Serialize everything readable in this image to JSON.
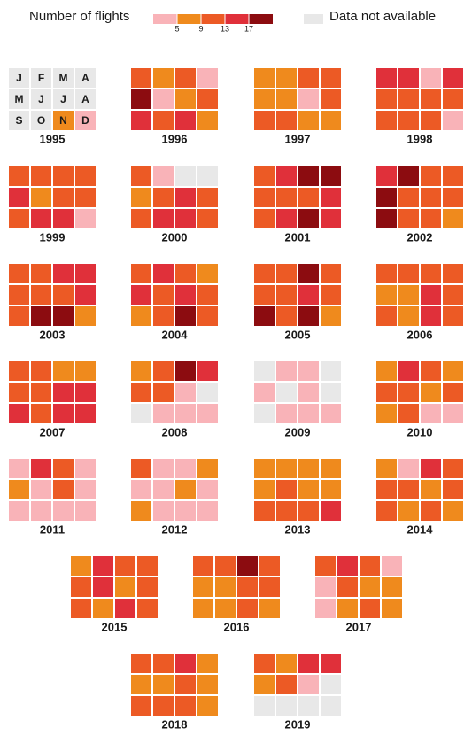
{
  "chart_data": {
    "type": "calendar-heatmap",
    "legend_title": "Number of flights",
    "missing_label": "Data not available",
    "missing_color": "#e8e8e8",
    "bins": [
      5,
      9,
      13,
      17
    ],
    "colors": [
      "#f9b3b8",
      "#ef8a1d",
      "#ec5a25",
      "#e0303a",
      "#8c0c10"
    ],
    "month_labels": [
      "J",
      "F",
      "M",
      "A",
      "M",
      "J",
      "J",
      "A",
      "S",
      "O",
      "N",
      "D"
    ],
    "years": [
      {
        "year": "1995",
        "values": [
          null,
          null,
          null,
          null,
          null,
          null,
          null,
          null,
          null,
          null,
          7,
          3
        ]
      },
      {
        "year": "1996",
        "values": [
          11,
          7,
          11,
          3,
          19,
          3,
          7,
          11,
          15,
          11,
          15,
          7
        ]
      },
      {
        "year": "1997",
        "values": [
          7,
          7,
          11,
          11,
          7,
          7,
          3,
          11,
          11,
          11,
          7,
          7
        ]
      },
      {
        "year": "1998",
        "values": [
          15,
          15,
          3,
          15,
          11,
          11,
          11,
          11,
          11,
          11,
          11,
          3
        ]
      },
      {
        "year": "1999",
        "values": [
          11,
          11,
          11,
          11,
          15,
          7,
          11,
          11,
          11,
          15,
          15,
          3
        ]
      },
      {
        "year": "2000",
        "values": [
          11,
          3,
          null,
          null,
          7,
          11,
          15,
          11,
          11,
          15,
          15,
          11
        ]
      },
      {
        "year": "2001",
        "values": [
          11,
          15,
          19,
          19,
          11,
          11,
          11,
          15,
          11,
          15,
          19,
          15
        ]
      },
      {
        "year": "2002",
        "values": [
          15,
          19,
          11,
          11,
          19,
          11,
          11,
          11,
          19,
          11,
          11,
          7
        ]
      },
      {
        "year": "2003",
        "values": [
          11,
          11,
          15,
          15,
          11,
          11,
          11,
          15,
          11,
          19,
          19,
          7
        ]
      },
      {
        "year": "2004",
        "values": [
          11,
          15,
          11,
          7,
          15,
          11,
          15,
          11,
          7,
          11,
          19,
          11
        ]
      },
      {
        "year": "2005",
        "values": [
          11,
          11,
          19,
          11,
          11,
          11,
          15,
          11,
          19,
          11,
          19,
          7
        ]
      },
      {
        "year": "2006",
        "values": [
          11,
          11,
          11,
          11,
          7,
          7,
          15,
          11,
          11,
          7,
          15,
          11
        ]
      },
      {
        "year": "2007",
        "values": [
          11,
          11,
          7,
          7,
          11,
          11,
          15,
          15,
          15,
          11,
          15,
          15
        ]
      },
      {
        "year": "2008",
        "values": [
          7,
          11,
          19,
          15,
          11,
          11,
          3,
          null,
          null,
          3,
          3,
          3
        ]
      },
      {
        "year": "2009",
        "values": [
          null,
          3,
          3,
          null,
          3,
          null,
          3,
          null,
          null,
          3,
          3,
          3
        ]
      },
      {
        "year": "2010",
        "values": [
          7,
          15,
          11,
          7,
          11,
          11,
          7,
          11,
          7,
          11,
          3,
          3
        ]
      },
      {
        "year": "2011",
        "values": [
          3,
          15,
          11,
          3,
          7,
          3,
          11,
          3,
          3,
          3,
          3,
          3
        ]
      },
      {
        "year": "2012",
        "values": [
          11,
          3,
          3,
          7,
          3,
          3,
          7,
          3,
          7,
          3,
          3,
          3
        ]
      },
      {
        "year": "2013",
        "values": [
          7,
          7,
          7,
          7,
          7,
          11,
          7,
          7,
          11,
          11,
          11,
          15
        ]
      },
      {
        "year": "2014",
        "values": [
          7,
          3,
          15,
          11,
          11,
          11,
          7,
          11,
          11,
          7,
          11,
          7
        ]
      },
      {
        "year": "2015",
        "values": [
          7,
          15,
          11,
          11,
          11,
          15,
          7,
          11,
          11,
          7,
          15,
          11
        ]
      },
      {
        "year": "2016",
        "values": [
          11,
          11,
          19,
          11,
          7,
          7,
          11,
          11,
          7,
          7,
          11,
          7
        ]
      },
      {
        "year": "2017",
        "values": [
          11,
          15,
          11,
          3,
          3,
          11,
          7,
          7,
          3,
          7,
          11,
          7
        ]
      },
      {
        "year": "2018",
        "values": [
          11,
          11,
          15,
          7,
          7,
          7,
          11,
          7,
          11,
          11,
          11,
          7
        ]
      },
      {
        "year": "2019",
        "values": [
          11,
          7,
          15,
          15,
          7,
          11,
          3,
          null,
          null,
          null,
          null,
          null
        ]
      }
    ]
  }
}
